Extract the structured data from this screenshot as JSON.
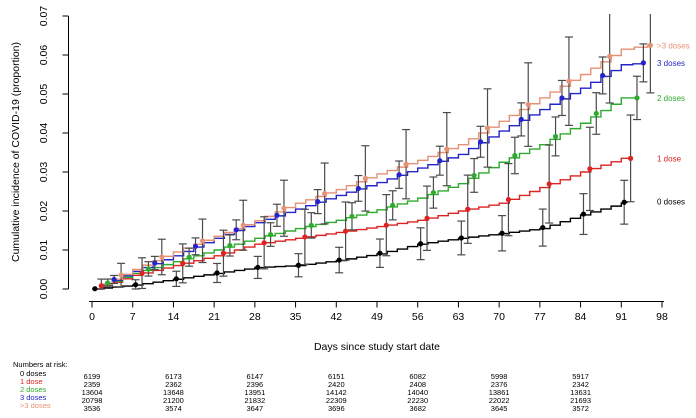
{
  "chart_data": {
    "type": "line",
    "subtype": "cumulative-incidence-step-curves-with-ci-markers",
    "title": "",
    "xlabel": "Days since study start date",
    "ylabel": "Cumulative incidence of COVID-19 (proportion)",
    "xlim": [
      0,
      98
    ],
    "ylim": [
      0,
      0.07
    ],
    "grid": false,
    "x_ticks": [
      0,
      7,
      14,
      21,
      28,
      35,
      42,
      49,
      56,
      63,
      70,
      77,
      84,
      91,
      98
    ],
    "y_ticks": [
      "0.00",
      "0.01",
      "0.02",
      "0.03",
      "0.04",
      "0.05",
      "0.06",
      "0.07"
    ],
    "anchor_days": [
      0,
      7,
      14,
      21,
      28,
      35,
      42,
      49,
      56,
      63,
      70,
      77,
      84,
      91
    ],
    "series": [
      {
        "name": "0 doses",
        "color": "#000000",
        "n_at_risk": 6199,
        "marker_offset": 0.5,
        "end_day": 92,
        "end_value": 0.0225,
        "values": [
          0,
          0.001,
          0.0025,
          0.004,
          0.0055,
          0.006,
          0.0073,
          0.009,
          0.0115,
          0.013,
          0.0142,
          0.0155,
          0.019,
          0.022
        ]
      },
      {
        "name": "1 dose",
        "color": "#dd2222",
        "n_at_risk": 2359,
        "marker_offset": 1.6,
        "end_day": 93,
        "end_value": 0.0335,
        "values": [
          0,
          0.0035,
          0.006,
          0.0085,
          0.0115,
          0.013,
          0.0145,
          0.016,
          0.0176,
          0.02,
          0.022,
          0.026,
          0.03,
          0.0335
        ]
      },
      {
        "name": "2 doses",
        "color": "#2eaa2e",
        "n_at_risk": 13604,
        "marker_offset": 2.7,
        "end_day": 94,
        "end_value": 0.049,
        "values": [
          0,
          0.004,
          0.007,
          0.01,
          0.013,
          0.0155,
          0.0176,
          0.0203,
          0.0233,
          0.027,
          0.0325,
          0.037,
          0.0425,
          0.049
        ]
      },
      {
        "name": "3 doses",
        "color": "#2424c8",
        "n_at_risk": 20798,
        "marker_offset": 3.8,
        "end_day": 95,
        "end_value": 0.058,
        "values": [
          0,
          0.0045,
          0.0085,
          0.013,
          0.017,
          0.0205,
          0.024,
          0.0273,
          0.031,
          0.0345,
          0.0405,
          0.046,
          0.0515,
          0.0575
        ]
      },
      {
        "name": ">3 doses",
        "color": "#e69176",
        "n_at_risk": 3536,
        "marker_offset": 5.0,
        "end_day": 95.5,
        "end_value": 0.0625,
        "values": [
          0,
          0.005,
          0.0095,
          0.0135,
          0.0175,
          0.022,
          0.0255,
          0.0295,
          0.033,
          0.037,
          0.043,
          0.049,
          0.055,
          0.0615
        ]
      }
    ],
    "error_bars": {
      "color": "#4a4a4a",
      "z": 3.0,
      "cap_halfwidth": 4
    },
    "legend": {
      "position": "right-margin",
      "labels": [
        ">3 doses",
        "3 doses",
        "2 doses",
        "1 dose",
        "0 doses"
      ]
    }
  },
  "at_risk_table": {
    "header": "Numbers at risk:",
    "column_days": [
      0,
      14,
      28,
      42,
      56,
      70,
      84
    ],
    "rows": [
      {
        "label": "0 doses",
        "color": "#000000",
        "values": [
          6199,
          6173,
          6147,
          6151,
          6082,
          5998,
          5917
        ]
      },
      {
        "label": "1 dose",
        "color": "#dd2222",
        "values": [
          2359,
          2362,
          2396,
          2420,
          2408,
          2376,
          2342
        ]
      },
      {
        "label": "2 doses",
        "color": "#2eaa2e",
        "values": [
          13604,
          13648,
          13951,
          14142,
          14040,
          13861,
          13631
        ]
      },
      {
        "label": "3 doses",
        "color": "#2424c8",
        "values": [
          20798,
          21200,
          21832,
          22309,
          22230,
          22022,
          21693
        ]
      },
      {
        "label": ">3 doses",
        "color": "#e69176",
        "values": [
          3536,
          3574,
          3647,
          3696,
          3682,
          3645,
          3572
        ]
      }
    ]
  }
}
